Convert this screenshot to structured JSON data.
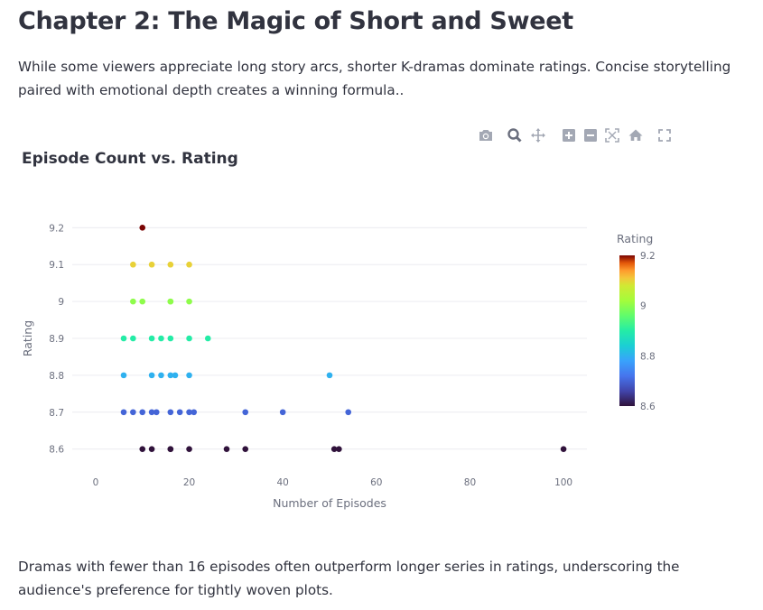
{
  "page": {
    "heading": "Chapter 2: The Magic of Short and Sweet",
    "intro": "While some viewers appreciate long story arcs, shorter K-dramas dominate ratings. Concise storytelling paired with emotional depth creates a winning formula..",
    "outro": "Dramas with fewer than 16 episodes often outperform longer series in ratings, underscoring the audience's preference for tightly woven plots."
  },
  "modebar": {
    "icons": [
      "camera-icon",
      "zoom-icon",
      "pan-icon",
      "zoom-in-icon",
      "zoom-out-icon",
      "autoscale-icon",
      "reset-axes-icon",
      "fullscreen-icon"
    ]
  },
  "chart_data": {
    "type": "scatter",
    "title": "Episode Count vs. Rating",
    "xlabel": "Number of Episodes",
    "ylabel": "Rating",
    "xlim": [
      -5,
      105
    ],
    "ylim": [
      8.56,
      9.24
    ],
    "x_ticks": [
      0,
      20,
      40,
      60,
      80,
      100
    ],
    "y_ticks": [
      8.6,
      8.7,
      8.8,
      8.9,
      9,
      9.1,
      9.2
    ],
    "y_tick_labels": [
      "8.6",
      "8.7",
      "8.8",
      "8.9",
      "9",
      "9.1",
      "9.2"
    ],
    "grid": true,
    "colorbar": {
      "title": "Rating",
      "colorscale": "Turbo",
      "range": [
        8.6,
        9.2
      ],
      "tick_values": [
        9.2,
        9,
        8.8,
        8.6
      ],
      "tick_labels": [
        "9.2",
        "9",
        "8.8",
        "8.6"
      ]
    },
    "points": [
      {
        "x": 10,
        "y": 9.2
      },
      {
        "x": 8,
        "y": 9.1
      },
      {
        "x": 12,
        "y": 9.1
      },
      {
        "x": 16,
        "y": 9.1
      },
      {
        "x": 20,
        "y": 9.1
      },
      {
        "x": 8,
        "y": 9.0
      },
      {
        "x": 10,
        "y": 9.0
      },
      {
        "x": 16,
        "y": 9.0
      },
      {
        "x": 16,
        "y": 9.0
      },
      {
        "x": 20,
        "y": 9.0
      },
      {
        "x": 6,
        "y": 8.9
      },
      {
        "x": 8,
        "y": 8.9
      },
      {
        "x": 12,
        "y": 8.9
      },
      {
        "x": 14,
        "y": 8.9
      },
      {
        "x": 16,
        "y": 8.9
      },
      {
        "x": 20,
        "y": 8.9
      },
      {
        "x": 24,
        "y": 8.9
      },
      {
        "x": 6,
        "y": 8.8
      },
      {
        "x": 12,
        "y": 8.8
      },
      {
        "x": 14,
        "y": 8.8
      },
      {
        "x": 16,
        "y": 8.8
      },
      {
        "x": 17,
        "y": 8.8
      },
      {
        "x": 20,
        "y": 8.8
      },
      {
        "x": 50,
        "y": 8.8
      },
      {
        "x": 6,
        "y": 8.7
      },
      {
        "x": 8,
        "y": 8.7
      },
      {
        "x": 10,
        "y": 8.7
      },
      {
        "x": 12,
        "y": 8.7
      },
      {
        "x": 13,
        "y": 8.7
      },
      {
        "x": 16,
        "y": 8.7
      },
      {
        "x": 18,
        "y": 8.7
      },
      {
        "x": 20,
        "y": 8.7
      },
      {
        "x": 21,
        "y": 8.7
      },
      {
        "x": 32,
        "y": 8.7
      },
      {
        "x": 40,
        "y": 8.7
      },
      {
        "x": 54,
        "y": 8.7
      },
      {
        "x": 10,
        "y": 8.6
      },
      {
        "x": 12,
        "y": 8.6
      },
      {
        "x": 16,
        "y": 8.6
      },
      {
        "x": 16,
        "y": 8.6
      },
      {
        "x": 20,
        "y": 8.6
      },
      {
        "x": 28,
        "y": 8.6
      },
      {
        "x": 32,
        "y": 8.6
      },
      {
        "x": 51,
        "y": 8.6
      },
      {
        "x": 52,
        "y": 8.6
      },
      {
        "x": 100,
        "y": 8.6
      }
    ]
  }
}
